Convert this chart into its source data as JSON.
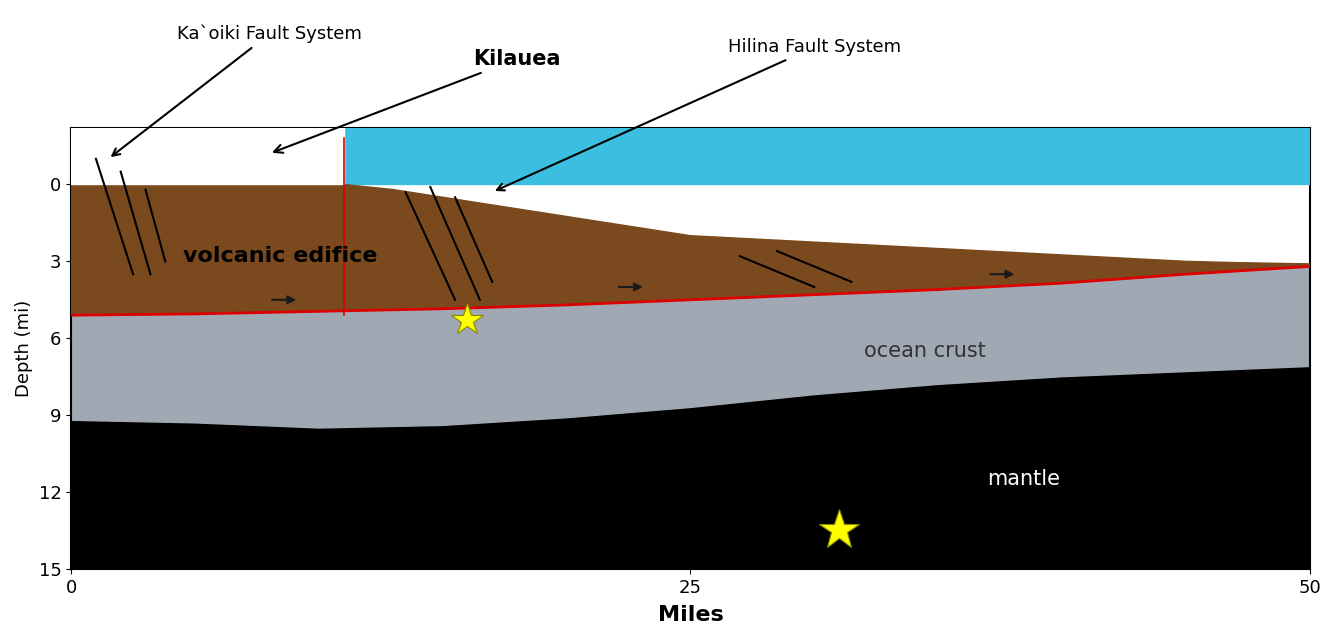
{
  "xlim": [
    0,
    50
  ],
  "ylim_bottom": 15,
  "ylim_top": -2.2,
  "xlabel": "Miles",
  "ylabel": "Depth (mi)",
  "xticks": [
    0,
    25,
    50
  ],
  "yticks": [
    0,
    3,
    6,
    9,
    12,
    15
  ],
  "bg_color": "#ffffff",
  "ocean_color": "#3bbfe0",
  "volcanic_color": "#7a4a1e",
  "ocean_crust_color": "#a0a8b4",
  "mantle_color": "#000000",
  "detachment_color": "#dd0000",
  "label_volcanic": "volcanic edifice",
  "label_ocean_crust": "ocean crust",
  "label_mantle": "mantle",
  "label_kilauea": "Kilauea",
  "label_kaoiki": "Ka`oiki Fault System",
  "label_hilina": "Hilina Fault System",
  "star1_x": 16,
  "star1_y": 5.3,
  "star2_x": 31,
  "star2_y": 13.5,
  "star_color": "#ffff00",
  "star_edge_color": "#888800",
  "figsize": [
    13.36,
    6.4
  ],
  "dpi": 100
}
